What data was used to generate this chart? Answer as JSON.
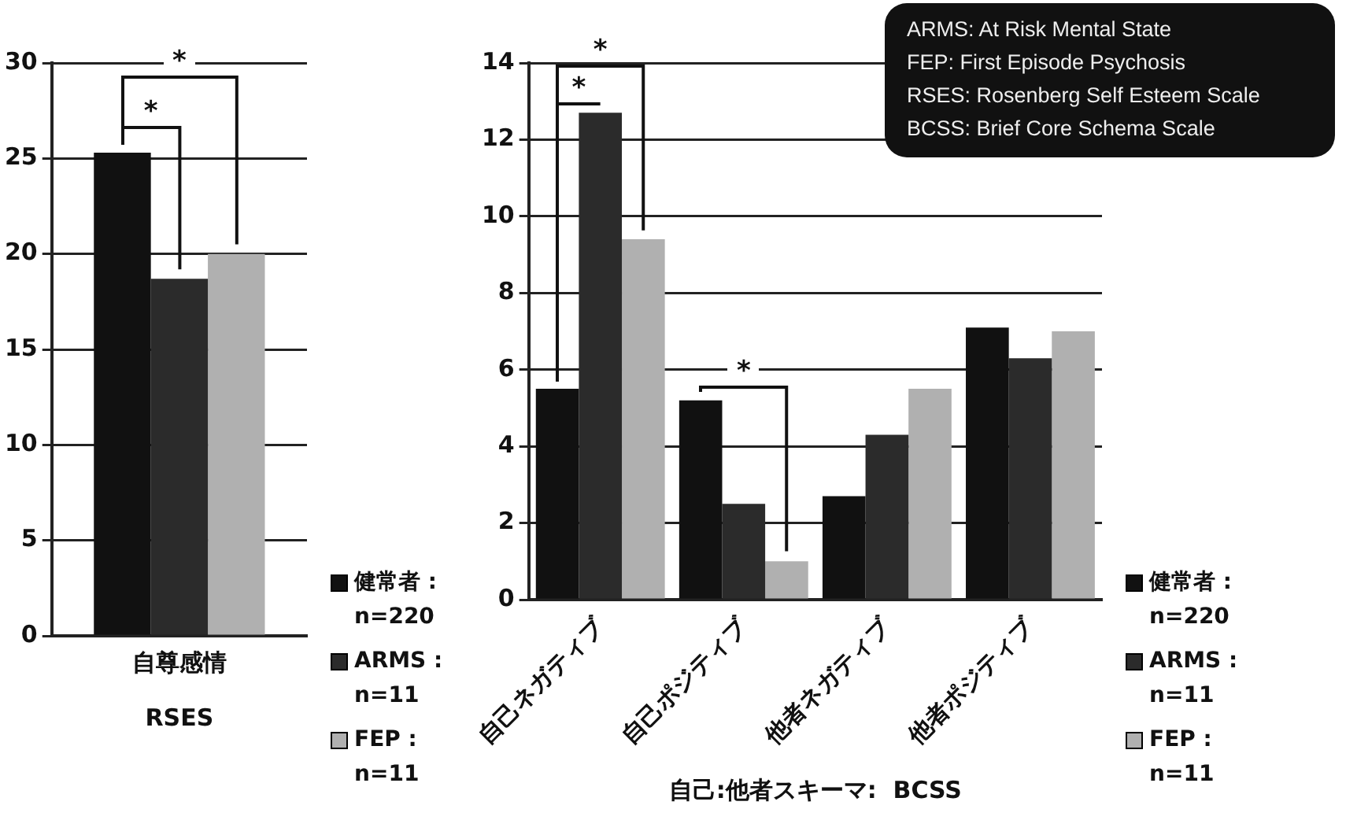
{
  "chart_data": [
    {
      "type": "bar",
      "xlabel": "RSES",
      "categories": [
        "自尊感情"
      ],
      "series": [
        {
          "name": "健常者 : n=220",
          "color": "#111111",
          "values": [
            25.3
          ]
        },
        {
          "name": "ARMS : n=11",
          "color": "#2b2b2b",
          "values": [
            18.7
          ]
        },
        {
          "name": "FEP : n=11",
          "color": "#b0b0b0",
          "values": [
            20.0
          ]
        }
      ],
      "ylim": [
        0,
        30
      ],
      "yticks": [
        0,
        5,
        10,
        15,
        20,
        25,
        30
      ],
      "grid": "y",
      "legend": "bottom right",
      "annotations": [
        "*",
        "*"
      ]
    },
    {
      "type": "bar",
      "xlabel": "自己:他者スキーマ:  BCSS",
      "categories": [
        "自己ネガティブ",
        "自己ポジティブ",
        "他者ネガティブ",
        "他者ポジティブ"
      ],
      "series": [
        {
          "name": "健常者 : n=220",
          "color": "#111111",
          "values": [
            5.5,
            5.2,
            2.7,
            7.1
          ]
        },
        {
          "name": "ARMS : n=11",
          "color": "#2b2b2b",
          "values": [
            12.7,
            2.5,
            4.3,
            6.3
          ]
        },
        {
          "name": "FEP : n=11",
          "color": "#b0b0b0",
          "values": [
            9.4,
            1.0,
            5.5,
            7.0
          ]
        }
      ],
      "ylim": [
        0,
        14
      ],
      "yticks": [
        0,
        2,
        4,
        6,
        8,
        10,
        12,
        14
      ],
      "grid": "y",
      "legend": "bottom right",
      "annotations": [
        "*",
        "*",
        "*",
        "ARMS: At Risk Mental State",
        "FEP: First Episode Psychosis",
        "RSES: Rosenberg Self Esteem Scale",
        "BCSS: Brief Core Schema Scale"
      ]
    }
  ]
}
